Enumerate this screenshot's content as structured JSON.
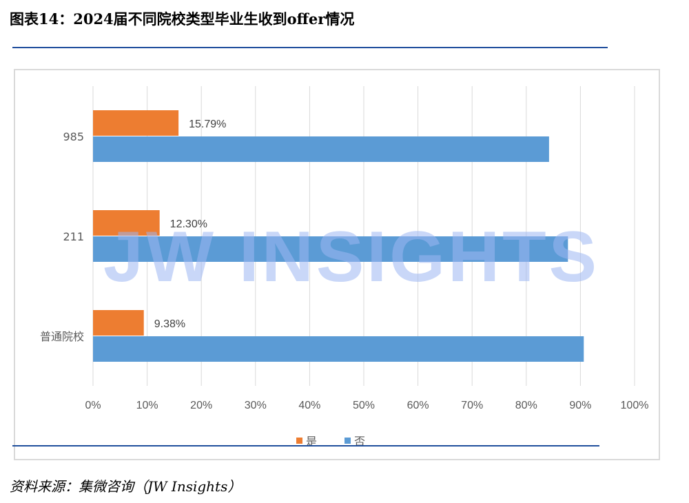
{
  "header": {
    "title": "图表14：2024届不同院校类型毕业生收到offer情况"
  },
  "footer": {
    "source": "资料来源：集微咨询（JW Insights）"
  },
  "watermark": {
    "text": "JW INSIGHTS"
  },
  "colors": {
    "yes": "#ED7D31",
    "no": "#5B9BD5",
    "grid": "#d9d9d9",
    "rule": "#1f4e9c"
  },
  "chart_data": {
    "type": "bar",
    "orientation": "horizontal",
    "categories": [
      "985",
      "211",
      "普通院校"
    ],
    "series": [
      {
        "name": "是",
        "values": [
          15.79,
          12.3,
          9.38
        ],
        "labels": [
          "15.79%",
          "12.30%",
          "9.38%"
        ]
      },
      {
        "name": "否",
        "values": [
          84.21,
          87.7,
          90.62
        ]
      }
    ],
    "xlim": [
      0,
      100
    ],
    "x_ticks": [
      "0%",
      "10%",
      "20%",
      "30%",
      "40%",
      "50%",
      "60%",
      "70%",
      "80%",
      "90%",
      "100%"
    ],
    "grid": true,
    "legend": "bottom-center"
  }
}
